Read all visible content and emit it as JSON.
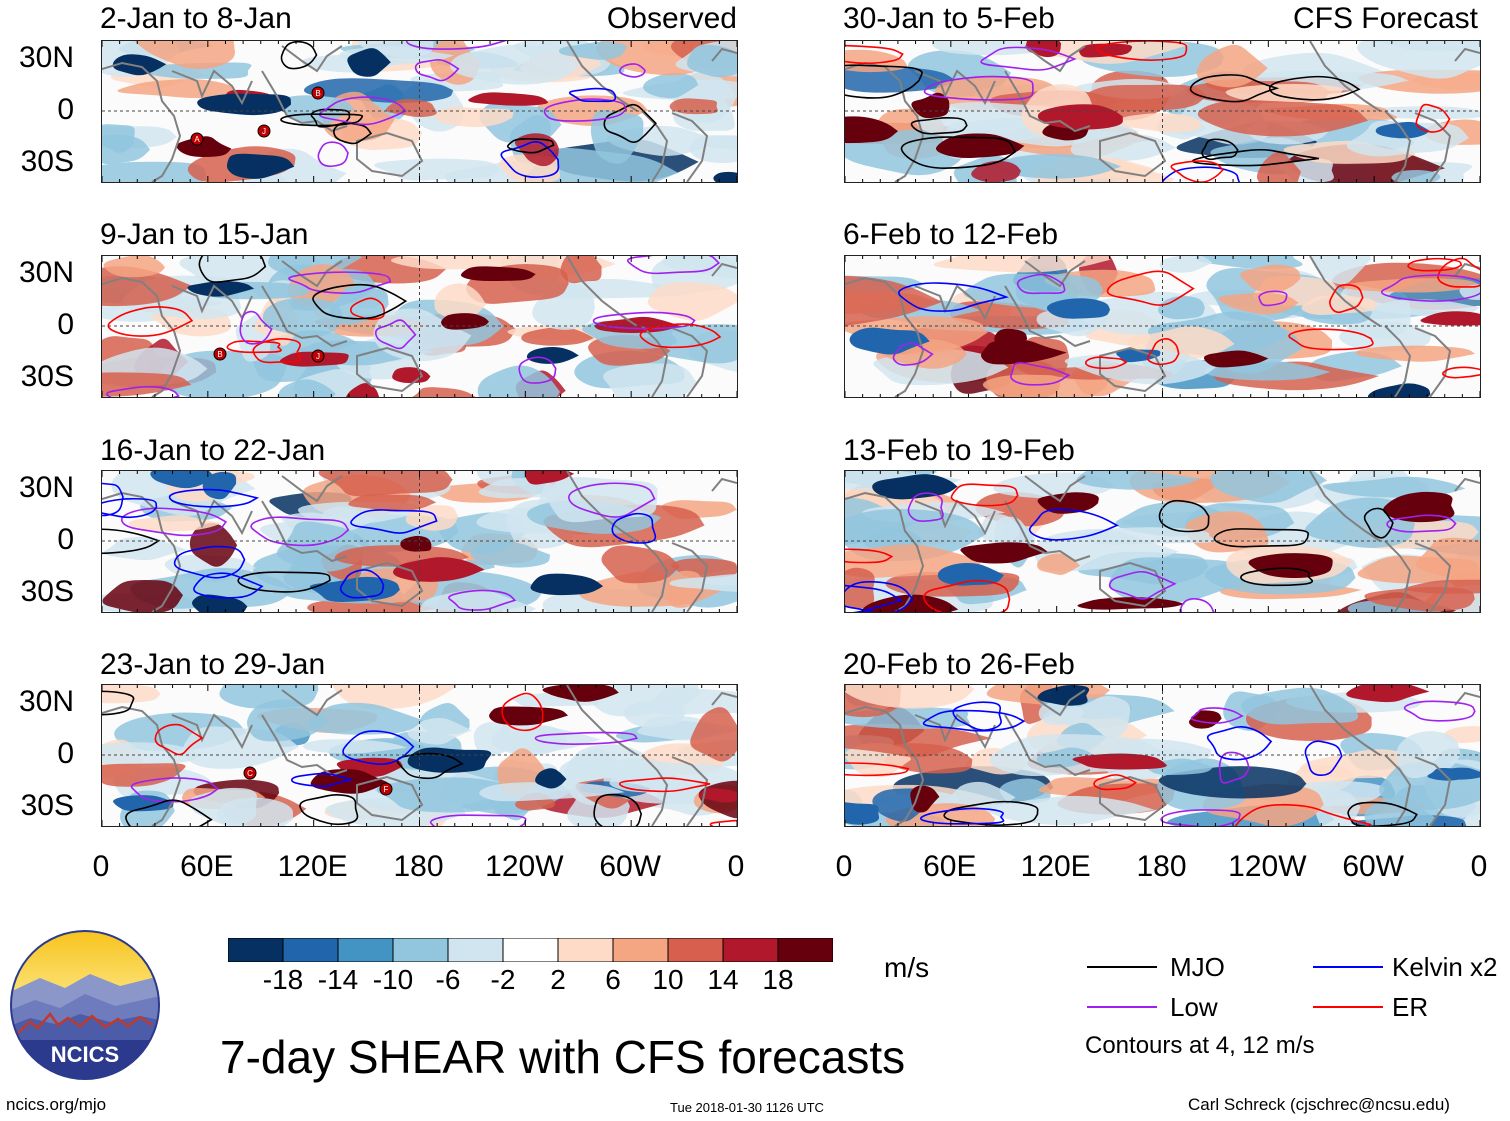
{
  "colors": {
    "red_dark": "#67000d",
    "red": "#b2182b",
    "red_mid": "#d6604d",
    "red_light": "#f4a582",
    "red_pale": "#fddbc7",
    "blue_dark": "#053061",
    "blue": "#2166ac",
    "blue_mid": "#4393c3",
    "blue_light": "#92c5de",
    "blue_pale": "#d1e5f0",
    "mjo": "#000000",
    "low": "#a020f0",
    "kelvin": "#0000ff",
    "er": "#ff0000",
    "coast": "#808080"
  },
  "observed_header": "Observed",
  "forecast_header": "CFS Forecast",
  "panels": [
    {
      "id": "p1",
      "title": "2-Jan to 8-Jan",
      "type": "observed",
      "storms": [
        "A",
        "J",
        "B"
      ]
    },
    {
      "id": "p2",
      "title": "9-Jan to 15-Jan",
      "type": "observed",
      "storms": [
        "B",
        "J"
      ]
    },
    {
      "id": "p3",
      "title": "16-Jan to 22-Jan",
      "type": "observed",
      "storms": []
    },
    {
      "id": "p4",
      "title": "23-Jan to 29-Jan",
      "type": "observed",
      "storms": [
        "C",
        "F"
      ]
    },
    {
      "id": "p5",
      "title": "30-Jan to 5-Feb",
      "type": "forecast",
      "storms": []
    },
    {
      "id": "p6",
      "title": "6-Feb to 12-Feb",
      "type": "forecast",
      "storms": []
    },
    {
      "id": "p7",
      "title": "13-Feb to 19-Feb",
      "type": "forecast",
      "storms": []
    },
    {
      "id": "p8",
      "title": "20-Feb to 26-Feb",
      "type": "forecast",
      "storms": []
    }
  ],
  "lat_labels": [
    "30N",
    "0",
    "30S"
  ],
  "lon_labels": [
    "0",
    "60E",
    "120E",
    "180",
    "120W",
    "60W",
    "0"
  ],
  "colorbar": {
    "ticks": [
      "-18",
      "-14",
      "-10",
      "-6",
      "-2",
      "2",
      "6",
      "10",
      "14",
      "18"
    ],
    "unit": "m/s"
  },
  "legend": {
    "items": [
      {
        "label": "MJO",
        "color": "#000000"
      },
      {
        "label": "Kelvin x2",
        "color": "#0000ff"
      },
      {
        "label": "Low",
        "color": "#a020f0"
      },
      {
        "label": "ER",
        "color": "#ff0000"
      }
    ],
    "note": "Contours at 4, 12 m/s"
  },
  "logo": {
    "text": "NCICS"
  },
  "main_title": "7-day SHEAR with CFS forecasts",
  "footer": {
    "left": "ncics.org/mjo",
    "center": "Tue 2018-01-30 1126 UTC",
    "right": "Carl Schreck (cjschrec@ncsu.edu)"
  }
}
